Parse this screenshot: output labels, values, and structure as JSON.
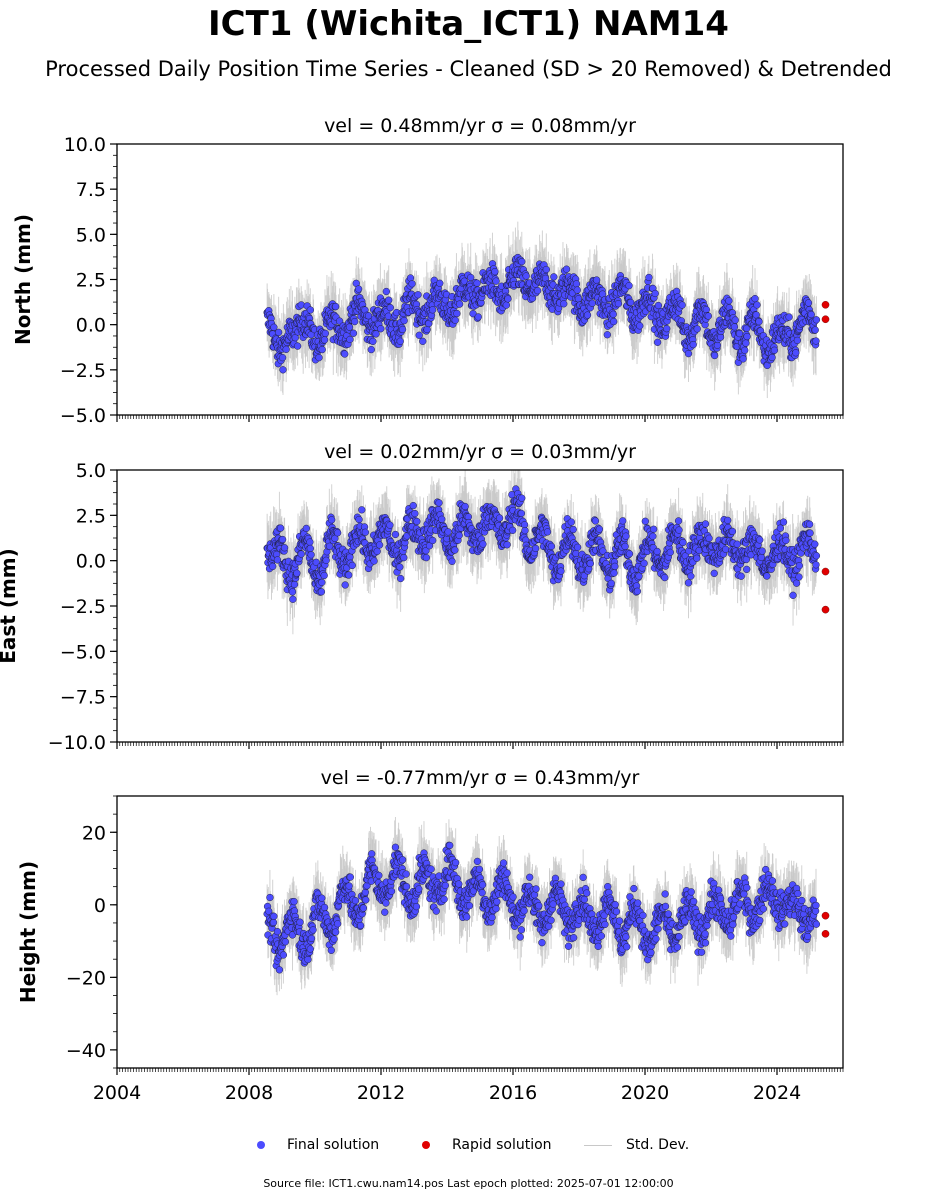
{
  "title": "ICT1 (Wichita_ICT1) NAM14",
  "subtitle": "Processed Daily Position Time Series - Cleaned (SD > 20 Removed) & Detrended",
  "legend": {
    "final": "Final solution",
    "rapid": "Rapid solution",
    "stddev": "Std. Dev."
  },
  "footer": "Source file: ICT1.cwu.nam14.pos  Last epoch plotted: 2025-07-01 12:00:00",
  "colors": {
    "final": "#4c4cff",
    "rapid": "#e00000",
    "stddev": "#c8c8c8"
  },
  "chart_data": [
    {
      "type": "scatter",
      "title": "vel = 0.48mm/yr   σ = 0.08mm/yr",
      "ylabel": "North (mm)",
      "xlim": [
        2004,
        2026
      ],
      "ylim": [
        -5,
        10
      ],
      "yticks": [
        -5.0,
        -2.5,
        0.0,
        2.5,
        5.0,
        7.5,
        10.0
      ],
      "ytick_labels": [
        "−5.0",
        "−2.5",
        "0.0",
        "2.5",
        "5.0",
        "7.5",
        "10.0"
      ],
      "series": [
        {
          "name": "Final solution",
          "x": [
            2008.6,
            2008.9,
            2009.3,
            2009.7,
            2010.1,
            2010.5,
            2010.9,
            2011.3,
            2011.7,
            2012.1,
            2012.5,
            2012.9,
            2013.3,
            2013.7,
            2014.1,
            2014.5,
            2014.9,
            2015.3,
            2015.7,
            2016.1,
            2016.5,
            2016.9,
            2017.3,
            2017.7,
            2018.1,
            2018.5,
            2018.9,
            2019.3,
            2019.7,
            2020.1,
            2020.5,
            2020.9,
            2021.3,
            2021.7,
            2022.1,
            2022.5,
            2022.9,
            2023.3,
            2023.7,
            2024.1,
            2024.5,
            2024.9,
            2025.2
          ],
          "y": [
            0.2,
            -1.5,
            -0.5,
            0.3,
            -1.2,
            0.4,
            -0.6,
            1.2,
            -0.3,
            1.0,
            -0.5,
            1.6,
            0.2,
            1.8,
            0.4,
            2.2,
            1.3,
            2.5,
            1.2,
            3.0,
            1.8,
            2.6,
            1.4,
            2.4,
            0.8,
            2.0,
            0.5,
            2.2,
            0.3,
            1.8,
            -0.2,
            1.3,
            -0.8,
            1.0,
            -1.1,
            0.8,
            -1.3,
            0.6,
            -1.6,
            -0.2,
            -1.0,
            1.0,
            -0.4
          ]
        },
        {
          "name": "Rapid solution",
          "x": [
            2025.47,
            2025.47
          ],
          "y": [
            1.1,
            0.3
          ]
        }
      ]
    },
    {
      "type": "scatter",
      "title": "vel = 0.02mm/yr   σ = 0.03mm/yr",
      "ylabel": "East (mm)",
      "xlim": [
        2004,
        2026
      ],
      "ylim": [
        -10,
        5
      ],
      "yticks": [
        -10.0,
        -7.5,
        -5.0,
        -2.5,
        0.0,
        2.5,
        5.0
      ],
      "ytick_labels": [
        "−10.0",
        "−7.5",
        "−5.0",
        "−2.5",
        "0.0",
        "2.5",
        "5.0"
      ],
      "series": [
        {
          "name": "Final solution",
          "x": [
            2008.6,
            2008.9,
            2009.3,
            2009.7,
            2010.1,
            2010.5,
            2010.9,
            2011.3,
            2011.7,
            2012.1,
            2012.5,
            2012.9,
            2013.3,
            2013.7,
            2014.1,
            2014.5,
            2014.9,
            2015.3,
            2015.7,
            2016.1,
            2016.5,
            2016.9,
            2017.3,
            2017.7,
            2018.1,
            2018.5,
            2018.9,
            2019.3,
            2019.7,
            2020.1,
            2020.5,
            2020.9,
            2021.3,
            2021.7,
            2022.1,
            2022.5,
            2022.9,
            2023.3,
            2023.7,
            2024.1,
            2024.5,
            2024.9,
            2025.2
          ],
          "y": [
            0.2,
            1.0,
            -1.0,
            1.2,
            -1.4,
            1.5,
            -0.5,
            1.8,
            0.2,
            2.0,
            0.0,
            2.2,
            1.0,
            2.5,
            0.6,
            2.4,
            1.0,
            2.8,
            1.2,
            3.2,
            0.4,
            1.8,
            -0.6,
            1.6,
            -0.6,
            1.4,
            -0.8,
            1.2,
            -1.0,
            1.2,
            -0.4,
            1.6,
            -0.2,
            1.5,
            0.2,
            1.4,
            0.0,
            1.2,
            -0.6,
            1.2,
            -0.5,
            1.4,
            0.3
          ]
        },
        {
          "name": "Rapid solution",
          "x": [
            2025.47,
            2025.47
          ],
          "y": [
            -0.6,
            -2.7
          ]
        }
      ]
    },
    {
      "type": "scatter",
      "title": "vel = -0.77mm/yr   σ = 0.43mm/yr",
      "ylabel": "Height (mm)",
      "xlim": [
        2004,
        2026
      ],
      "ylim": [
        -45,
        30
      ],
      "yticks": [
        -40,
        -20,
        0,
        20
      ],
      "ytick_labels": [
        "−40",
        "−20",
        "0",
        "20"
      ],
      "xticks": [
        2004,
        2008,
        2012,
        2016,
        2020,
        2024
      ],
      "xtick_labels": [
        "2004",
        "2008",
        "2012",
        "2016",
        "2020",
        "2024"
      ],
      "series": [
        {
          "name": "Final solution",
          "x": [
            2008.6,
            2008.9,
            2009.3,
            2009.7,
            2010.1,
            2010.5,
            2010.9,
            2011.3,
            2011.7,
            2012.1,
            2012.5,
            2012.9,
            2013.3,
            2013.7,
            2014.1,
            2014.5,
            2014.9,
            2015.3,
            2015.7,
            2016.1,
            2016.5,
            2016.9,
            2017.3,
            2017.7,
            2018.1,
            2018.5,
            2018.9,
            2019.3,
            2019.7,
            2020.1,
            2020.5,
            2020.9,
            2021.3,
            2021.7,
            2022.1,
            2022.5,
            2022.9,
            2023.3,
            2023.7,
            2024.1,
            2024.5,
            2024.9,
            2025.2
          ],
          "y": [
            -4,
            -14,
            -2,
            -12,
            0,
            -8,
            6,
            -4,
            10,
            2,
            12,
            0,
            10,
            2,
            12,
            0,
            8,
            -2,
            8,
            -4,
            4,
            -6,
            4,
            -6,
            2,
            -8,
            2,
            -10,
            0,
            -12,
            -2,
            -10,
            0,
            -8,
            2,
            -6,
            4,
            -4,
            6,
            -2,
            2,
            -6,
            -2
          ]
        },
        {
          "name": "Rapid solution",
          "x": [
            2025.47,
            2025.47
          ],
          "y": [
            -3,
            -8
          ]
        }
      ]
    }
  ]
}
